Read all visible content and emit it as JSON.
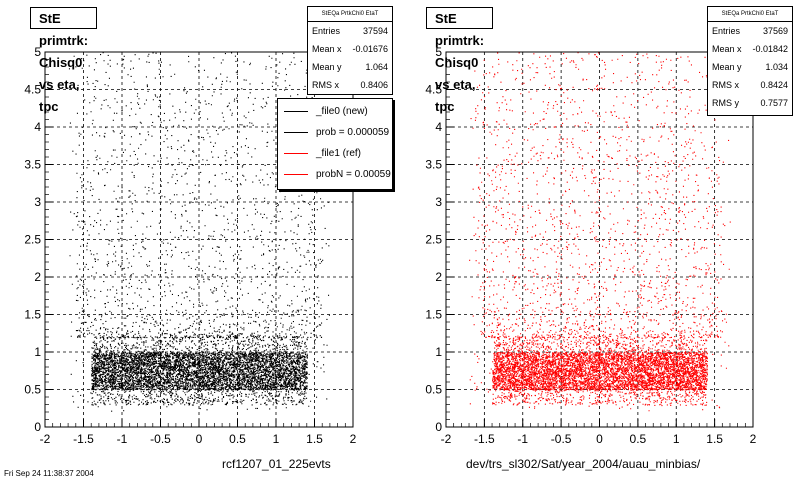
{
  "chart_data": [
    {
      "type": "scatter",
      "title": "StE primtrk: Chisq0 vs eta, tpc",
      "xlabel": "rcf1207_01_225evts",
      "ylabel": "",
      "xlim": [
        -2,
        2
      ],
      "ylim": [
        0,
        5
      ],
      "x_ticks": [
        "-2",
        "-1.5",
        "-1",
        "-0.5",
        "0",
        "0.5",
        "1",
        "1.5",
        "2"
      ],
      "y_ticks": [
        "0",
        "0.5",
        "1",
        "1.5",
        "2",
        "2.5",
        "3",
        "3.5",
        "4",
        "4.5",
        "5"
      ],
      "grid": true,
      "marker_color": "#000000",
      "stats": {
        "header": "StEQa PrtkChi0 EtaT",
        "rows": [
          {
            "label": "Entries",
            "value": "37594"
          },
          {
            "label": "Mean x",
            "value": "-0.01676"
          },
          {
            "label": "Mean y",
            "value": "1.064"
          },
          {
            "label": "RMS x",
            "value": "0.8406"
          }
        ]
      },
      "legend": {
        "placement": "top-right",
        "entries": [
          {
            "label": "_file0 (new)",
            "color": "#000000"
          },
          {
            "label": "prob = 0.000059",
            "color": "#000000"
          },
          {
            "label": "_file1 (ref)",
            "color": "#ff0000"
          },
          {
            "label": "probN = 0.00059",
            "color": "#ff0000"
          }
        ]
      },
      "distribution": {
        "eta_core_range": [
          -1.4,
          1.4
        ],
        "eta_tail_range": [
          -1.6,
          1.6
        ],
        "chisq_core_range": [
          0.3,
          1.2
        ],
        "dense_band": [
          0.5,
          1.0
        ]
      }
    },
    {
      "type": "scatter",
      "title": "StE primtrk: Chisq0 vs eta, tpc",
      "xlabel": "dev/trs_sl302/Sat/year_2004/auau_minbias/",
      "ylabel": "",
      "xlim": [
        -2,
        2
      ],
      "ylim": [
        0,
        5
      ],
      "x_ticks": [
        "-2",
        "-1.5",
        "-1",
        "-0.5",
        "0",
        "0.5",
        "1",
        "1.5",
        "2"
      ],
      "y_ticks": [
        "0",
        "0.5",
        "1",
        "1.5",
        "2",
        "2.5",
        "3",
        "3.5",
        "4",
        "4.5",
        "5"
      ],
      "grid": true,
      "marker_color": "#ff0000",
      "stats": {
        "header": "StEQa PrtkChi0 EtaT",
        "rows": [
          {
            "label": "Entries",
            "value": "37569"
          },
          {
            "label": "Mean x",
            "value": "-0.01842"
          },
          {
            "label": "Mean y",
            "value": "1.034"
          },
          {
            "label": "RMS x",
            "value": "0.8424"
          },
          {
            "label": "RMS y",
            "value": "0.7577"
          }
        ]
      },
      "distribution": {
        "eta_core_range": [
          -1.4,
          1.4
        ],
        "eta_tail_range": [
          -1.6,
          1.6
        ],
        "chisq_core_range": [
          0.3,
          1.2
        ],
        "dense_band": [
          0.5,
          1.0
        ]
      }
    }
  ],
  "footer": "Fri Sep 24 11:38:37 2004"
}
